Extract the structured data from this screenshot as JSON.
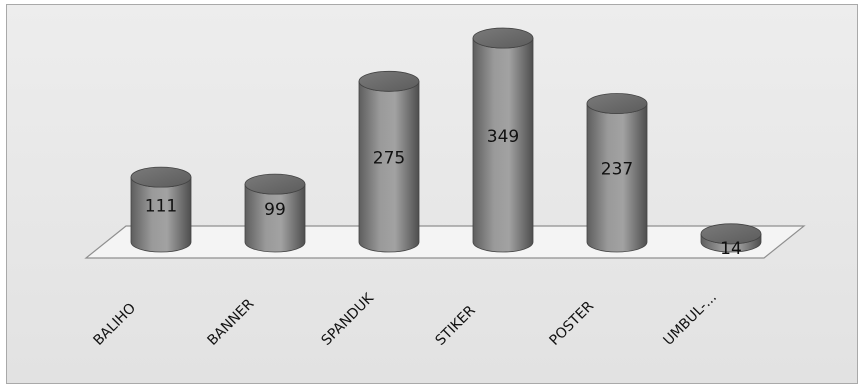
{
  "chart_data": {
    "type": "bar",
    "style": "3d-cylinder",
    "categories": [
      "BALIHO",
      "BANNER",
      "SPANDUK",
      "STIKER",
      "POSTER",
      "UMBUL-..."
    ],
    "values": [
      111,
      99,
      275,
      349,
      237,
      14
    ],
    "value_labels": [
      "111",
      "99",
      "275",
      "349",
      "237",
      "14"
    ],
    "title": "",
    "xlabel": "",
    "ylabel": "",
    "legend": "none",
    "grid": false,
    "colors": {
      "bar": "#8a8a8a",
      "bar_dark": "#5a5a5a",
      "bar_light": "#b4b4b4",
      "floor": "#f2f2f2",
      "floor_stroke": "#9a9a9a"
    }
  }
}
